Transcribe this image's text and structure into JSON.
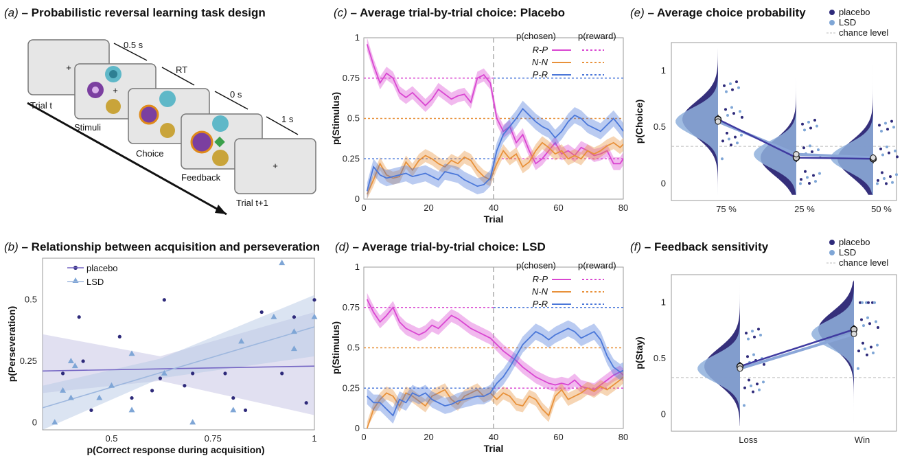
{
  "panel_a": {
    "title_letter": "(a)",
    "title": " – Probabilistic reversal learning task design",
    "labels": {
      "trial_t": "Trial t",
      "stimuli": "Stimuli",
      "choice": "Choice",
      "feedback": "Feedback",
      "trial_t1": "Trial t+1",
      "t05": "0.5 s",
      "rt": "RT",
      "t0": "0 s",
      "t1": "1 s"
    }
  },
  "panel_b": {
    "title_letter": "(b)",
    "title": " – Relationship between acquisition and perseveration"
  },
  "panel_c": {
    "title_letter": "(c)",
    "title": " – Average trial-by-trial choice: Placebo"
  },
  "panel_d": {
    "title_letter": "(d)",
    "title": " – Average trial-by-trial choice: LSD"
  },
  "panel_e": {
    "title_letter": "(e)",
    "title": " – Average choice probability"
  },
  "panel_f": {
    "title_letter": "(f)",
    "title": " – Feedback sensitivity"
  },
  "colors": {
    "placebo": "#2e2a7a",
    "lsd": "#7fa6d6",
    "rp": "#d946d1",
    "nn": "#e8913a",
    "pr": "#4a77d9",
    "violin_placebo": "#2a2474",
    "violin_lsd": "#8fb0dc"
  },
  "chart_data": [
    {
      "id": "b",
      "type": "scatter",
      "xlabel": "p(Correct response during acquisition)",
      "ylabel": "p(Perseveration)",
      "xlim": [
        0.33,
        1.0
      ],
      "ylim": [
        -0.03,
        0.67
      ],
      "xticks": [
        "0.5",
        "0.75",
        "1"
      ],
      "xtick_values": [
        0.5,
        0.75,
        1.0
      ],
      "yticks": [
        "0",
        "0.25",
        "0.5"
      ],
      "ytick_values": [
        0,
        0.25,
        0.5
      ],
      "legend": [
        "placebo",
        "LSD"
      ],
      "series": [
        {
          "name": "placebo",
          "marker": "circle",
          "x": [
            0.38,
            0.42,
            0.43,
            0.45,
            0.52,
            0.55,
            0.6,
            0.62,
            0.63,
            0.68,
            0.7,
            0.78,
            0.8,
            0.83,
            0.87,
            0.92,
            0.95,
            1.0,
            0.98
          ],
          "y": [
            0.2,
            0.43,
            0.25,
            0.05,
            0.35,
            0.1,
            0.13,
            0.18,
            0.5,
            0.15,
            0.2,
            0.2,
            0.1,
            0.05,
            0.45,
            0.2,
            0.43,
            0.5,
            0.08
          ],
          "fit": [
            0.21,
            0.23
          ]
        },
        {
          "name": "LSD",
          "marker": "triangle",
          "x": [
            0.36,
            0.38,
            0.4,
            0.4,
            0.41,
            0.47,
            0.5,
            0.55,
            0.55,
            0.63,
            0.7,
            0.8,
            0.82,
            0.9,
            0.92,
            0.95,
            0.95,
            1.0
          ],
          "y": [
            0.0,
            0.13,
            0.25,
            0.1,
            0.23,
            0.1,
            0.15,
            0.28,
            0.05,
            0.2,
            0.0,
            0.05,
            0.33,
            0.43,
            0.65,
            0.3,
            0.37,
            0.43
          ],
          "fit": [
            0.06,
            0.39
          ]
        }
      ]
    },
    {
      "id": "c",
      "type": "line",
      "xlabel": "Trial",
      "ylabel": "p(Stimulus)",
      "xlim": [
        0,
        80
      ],
      "ylim": [
        0,
        1
      ],
      "xticks": [
        "0",
        "20",
        "40",
        "60",
        "80"
      ],
      "yticks": [
        "0",
        "0.25",
        "0.5",
        "0.75",
        "1"
      ],
      "reversal_trial": 40,
      "legend_header": [
        "p(chosen)",
        "p(reward)"
      ],
      "reward_levels": {
        "R-P": 0.75,
        "N-N": 0.5,
        "P-R": 0.25
      },
      "series": [
        {
          "name": "R-P",
          "x": [
            1,
            3,
            5,
            7,
            9,
            11,
            13,
            15,
            17,
            19,
            21,
            23,
            25,
            27,
            29,
            31,
            33,
            35,
            37,
            39,
            41,
            43,
            45,
            47,
            49,
            51,
            53,
            55,
            57,
            59,
            61,
            63,
            65,
            67,
            69,
            71,
            73,
            75,
            77,
            79,
            80
          ],
          "values": [
            0.96,
            0.83,
            0.72,
            0.78,
            0.75,
            0.66,
            0.63,
            0.66,
            0.62,
            0.58,
            0.62,
            0.68,
            0.65,
            0.62,
            0.64,
            0.65,
            0.6,
            0.75,
            0.77,
            0.72,
            0.5,
            0.42,
            0.45,
            0.35,
            0.4,
            0.3,
            0.22,
            0.25,
            0.3,
            0.35,
            0.28,
            0.3,
            0.27,
            0.32,
            0.3,
            0.27,
            0.28,
            0.3,
            0.22,
            0.22,
            0.25
          ],
          "sem": 0.04
        },
        {
          "name": "N-N",
          "x": [
            1,
            3,
            5,
            7,
            9,
            11,
            13,
            15,
            17,
            19,
            21,
            23,
            25,
            27,
            29,
            31,
            33,
            35,
            37,
            39,
            41,
            43,
            45,
            47,
            49,
            51,
            53,
            55,
            57,
            59,
            61,
            63,
            65,
            67,
            69,
            71,
            73,
            75,
            77,
            79,
            80
          ],
          "values": [
            0.03,
            0.12,
            0.22,
            0.15,
            0.13,
            0.14,
            0.23,
            0.18,
            0.24,
            0.27,
            0.25,
            0.22,
            0.2,
            0.24,
            0.22,
            0.26,
            0.24,
            0.18,
            0.14,
            0.12,
            0.22,
            0.3,
            0.25,
            0.28,
            0.2,
            0.23,
            0.3,
            0.35,
            0.32,
            0.28,
            0.3,
            0.25,
            0.27,
            0.25,
            0.3,
            0.28,
            0.3,
            0.33,
            0.35,
            0.32,
            0.34
          ],
          "sem": 0.04
        },
        {
          "name": "P-R",
          "x": [
            1,
            3,
            5,
            7,
            9,
            11,
            13,
            15,
            17,
            19,
            21,
            23,
            25,
            27,
            29,
            31,
            33,
            35,
            37,
            39,
            41,
            43,
            45,
            47,
            49,
            51,
            53,
            55,
            57,
            59,
            61,
            63,
            65,
            67,
            69,
            71,
            73,
            75,
            77,
            79,
            80
          ],
          "values": [
            0.05,
            0.2,
            0.15,
            0.13,
            0.14,
            0.15,
            0.16,
            0.14,
            0.15,
            0.16,
            0.14,
            0.12,
            0.17,
            0.16,
            0.15,
            0.12,
            0.1,
            0.08,
            0.09,
            0.13,
            0.3,
            0.4,
            0.45,
            0.5,
            0.56,
            0.52,
            0.48,
            0.45,
            0.43,
            0.38,
            0.42,
            0.48,
            0.52,
            0.5,
            0.46,
            0.44,
            0.42,
            0.46,
            0.5,
            0.45,
            0.42
          ],
          "sem": 0.05
        }
      ]
    },
    {
      "id": "d",
      "type": "line",
      "xlabel": "Trial",
      "ylabel": "p(Stimulus)",
      "xlim": [
        0,
        80
      ],
      "ylim": [
        0,
        1
      ],
      "xticks": [
        "0",
        "20",
        "40",
        "60",
        "80"
      ],
      "yticks": [
        "0",
        "0.25",
        "0.5",
        "0.75",
        "1"
      ],
      "reversal_trial": 40,
      "legend_header": [
        "p(chosen)",
        "p(reward)"
      ],
      "reward_levels": {
        "R-P": 0.75,
        "N-N": 0.5,
        "P-R": 0.25
      },
      "series": [
        {
          "name": "R-P",
          "x": [
            1,
            3,
            5,
            7,
            9,
            11,
            13,
            15,
            17,
            19,
            21,
            23,
            25,
            27,
            29,
            31,
            33,
            35,
            37,
            39,
            41,
            43,
            45,
            47,
            49,
            51,
            53,
            55,
            57,
            59,
            61,
            63,
            65,
            67,
            69,
            71,
            73,
            75,
            77,
            79,
            80
          ],
          "values": [
            0.8,
            0.72,
            0.66,
            0.7,
            0.75,
            0.66,
            0.62,
            0.6,
            0.58,
            0.6,
            0.64,
            0.62,
            0.66,
            0.7,
            0.68,
            0.65,
            0.62,
            0.6,
            0.58,
            0.56,
            0.52,
            0.48,
            0.45,
            0.42,
            0.38,
            0.35,
            0.32,
            0.3,
            0.28,
            0.27,
            0.28,
            0.27,
            0.3,
            0.26,
            0.25,
            0.24,
            0.27,
            0.3,
            0.33,
            0.35,
            0.33
          ],
          "sem": 0.04
        },
        {
          "name": "N-N",
          "x": [
            1,
            3,
            5,
            7,
            9,
            11,
            13,
            15,
            17,
            19,
            21,
            23,
            25,
            27,
            29,
            31,
            33,
            35,
            37,
            39,
            41,
            43,
            45,
            47,
            49,
            51,
            53,
            55,
            57,
            59,
            61,
            63,
            65,
            67,
            69,
            71,
            73,
            75,
            77,
            79,
            80
          ],
          "values": [
            0.0,
            0.12,
            0.18,
            0.22,
            0.2,
            0.14,
            0.22,
            0.2,
            0.17,
            0.14,
            0.2,
            0.22,
            0.24,
            0.18,
            0.15,
            0.2,
            0.22,
            0.24,
            0.2,
            0.22,
            0.18,
            0.22,
            0.2,
            0.15,
            0.14,
            0.2,
            0.18,
            0.12,
            0.08,
            0.2,
            0.24,
            0.18,
            0.2,
            0.22,
            0.25,
            0.23,
            0.26,
            0.24,
            0.27,
            0.3,
            0.32
          ],
          "sem": 0.04
        },
        {
          "name": "P-R",
          "x": [
            1,
            3,
            5,
            7,
            9,
            11,
            13,
            15,
            17,
            19,
            21,
            23,
            25,
            27,
            29,
            31,
            33,
            35,
            37,
            39,
            41,
            43,
            45,
            47,
            49,
            51,
            53,
            55,
            57,
            59,
            61,
            63,
            65,
            67,
            69,
            71,
            73,
            75,
            77,
            79,
            80
          ],
          "values": [
            0.2,
            0.16,
            0.16,
            0.12,
            0.08,
            0.18,
            0.16,
            0.22,
            0.2,
            0.22,
            0.18,
            0.16,
            0.14,
            0.15,
            0.17,
            0.18,
            0.19,
            0.2,
            0.2,
            0.22,
            0.28,
            0.32,
            0.38,
            0.45,
            0.52,
            0.56,
            0.6,
            0.58,
            0.55,
            0.58,
            0.6,
            0.62,
            0.6,
            0.56,
            0.58,
            0.6,
            0.55,
            0.45,
            0.38,
            0.35,
            0.36
          ],
          "sem": 0.05
        }
      ]
    },
    {
      "id": "e",
      "type": "violin",
      "ylabel": "p(Choice)",
      "ylim": [
        -0.15,
        1.25
      ],
      "yticks": [
        "0",
        "0.5",
        "1"
      ],
      "categories": [
        "75 %",
        "25 %",
        "50 %"
      ],
      "legend": [
        "placebo",
        "LSD",
        "chance level"
      ],
      "chance_level": 0.33,
      "series": [
        {
          "name": "placebo",
          "means": [
            0.57,
            0.23,
            0.22
          ]
        },
        {
          "name": "LSD",
          "means": [
            0.55,
            0.26,
            0.23
          ]
        }
      ]
    },
    {
      "id": "f",
      "type": "violin",
      "ylabel": "p(Stay)",
      "ylim": [
        -0.15,
        1.25
      ],
      "yticks": [
        "0",
        "0.5",
        "1"
      ],
      "categories": [
        "Loss",
        "Win"
      ],
      "legend": [
        "placebo",
        "LSD",
        "chance level"
      ],
      "chance_level": 0.33,
      "series": [
        {
          "name": "placebo",
          "means": [
            0.43,
            0.76
          ]
        },
        {
          "name": "LSD",
          "means": [
            0.41,
            0.72
          ]
        }
      ]
    }
  ]
}
